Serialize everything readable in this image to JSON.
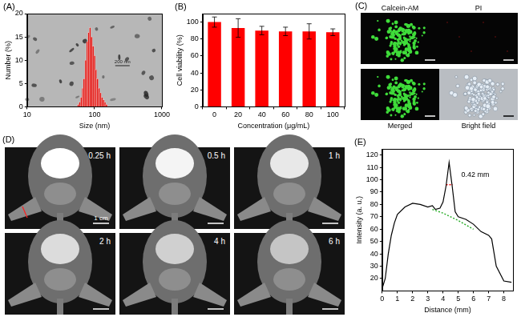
{
  "chart_data": [
    {
      "title": "(A)",
      "type": "histogram",
      "x_label": "Size (nm)",
      "y_label": "Number (%)",
      "bins": [
        56,
        59,
        62,
        65,
        68,
        72,
        76,
        80,
        84,
        88,
        93,
        98,
        103,
        108,
        114,
        120,
        126,
        133,
        140,
        147,
        155
      ],
      "values": [
        0.5,
        1,
        2,
        4,
        6,
        10,
        14,
        16,
        17,
        15,
        13,
        11,
        8,
        6,
        4,
        3,
        2,
        1.5,
        1,
        0.5
      ],
      "color": "#e4130f",
      "log": "x",
      "xlim": [
        10,
        1000
      ],
      "xticks": [
        10,
        100,
        1000
      ],
      "ylim": [
        0,
        20
      ],
      "yticks": [
        0,
        5,
        10,
        15,
        20
      ],
      "annotations": [
        {
          "text": "200 nm",
          "x": 260,
          "y": 9
        }
      ]
    },
    {
      "title": "(B)",
      "type": "bar",
      "x_label": "Concentration (μg/mL)",
      "y_label": "Cell viability (%)",
      "categories": [
        "0",
        "20",
        "40",
        "60",
        "80",
        "100"
      ],
      "values": [
        100,
        93,
        90,
        89,
        89,
        88
      ],
      "errors": [
        6,
        11,
        5,
        5,
        9,
        4
      ],
      "color": "#ff0000",
      "ylim": [
        0,
        110
      ],
      "yticks": [
        0,
        20,
        40,
        60,
        80,
        100
      ]
    },
    {
      "title": "(E)",
      "type": "line",
      "x_label": "Distance (mm)",
      "y_label": "Intensity (a. u.)",
      "series": [
        {
          "x": [
            0,
            0.2,
            0.4,
            0.6,
            0.8,
            1,
            1.5,
            2,
            2.5,
            3,
            3.3,
            3.5,
            3.8,
            4.0,
            4.2,
            4.4,
            4.6,
            4.8,
            5,
            5.5,
            6,
            6.5,
            7,
            7.2,
            7.5,
            8,
            8.5
          ],
          "values": [
            12,
            20,
            40,
            55,
            65,
            72,
            78,
            81,
            80,
            78,
            79,
            76,
            77,
            82,
            95,
            114,
            95,
            74,
            70,
            68,
            64,
            58,
            55,
            52,
            30,
            18,
            17
          ],
          "color": "#000000",
          "line_style": "solid"
        },
        {
          "x": [
            3.3,
            4,
            5,
            6
          ],
          "values": [
            76,
            73,
            67,
            60
          ],
          "color": "#22aa22",
          "line_style": "dotted"
        },
        {
          "x": [
            4.2,
            4.65
          ],
          "values": [
            96,
            96
          ],
          "color": "#ff0000",
          "line_style": "dotted"
        }
      ],
      "xlim": [
        0,
        8.6
      ],
      "xticks": [
        0,
        1,
        2,
        3,
        4,
        5,
        6,
        7,
        8
      ],
      "ylim": [
        10,
        125
      ],
      "yticks": [
        20,
        30,
        40,
        50,
        60,
        70,
        80,
        90,
        100,
        110,
        120
      ],
      "annotations": [
        {
          "text": "0.42 mm",
          "x": 5.2,
          "y": 104
        }
      ]
    }
  ],
  "images": [
    {
      "title": "(C)",
      "panels": [
        "Calcein-AM",
        "PI",
        "Merged",
        "Bright field"
      ]
    },
    {
      "title": "(D)",
      "panels": [
        "0.25 h",
        "0.5 h",
        "1 h",
        "2 h",
        "4 h",
        "6 h"
      ],
      "scale_bar": "1 cm"
    }
  ]
}
